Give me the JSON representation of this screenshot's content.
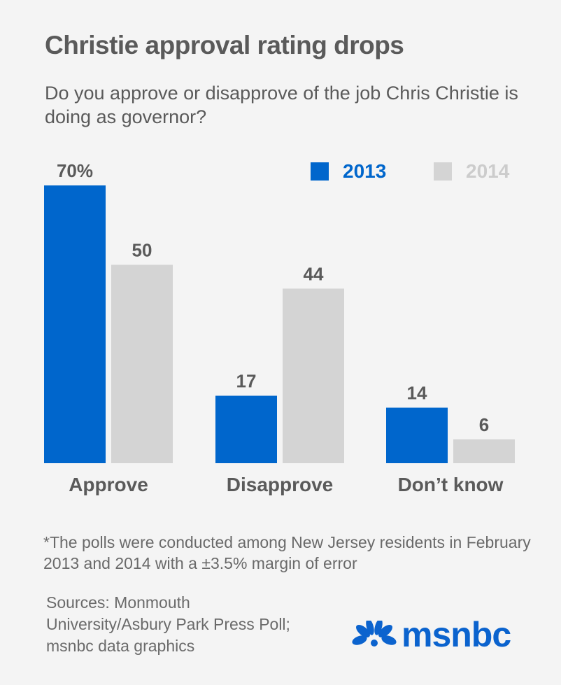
{
  "title": "Christie approval rating drops",
  "subtitle": "Do you approve or disapprove of the job Chris Christie is doing as governor?",
  "colors": {
    "s2013": "#0066cc",
    "s2014": "#d4d4d4",
    "label": "#5a5a5a",
    "legend2014": "#cccccc"
  },
  "chart_data": {
    "type": "bar",
    "categories": [
      "Approve",
      "Disapprove",
      "Don’t know"
    ],
    "series": [
      {
        "name": "2013",
        "values": [
          70,
          17,
          14
        ],
        "labels": [
          "70%",
          "17",
          "14"
        ]
      },
      {
        "name": "2014",
        "values": [
          50,
          44,
          6
        ],
        "labels": [
          "50",
          "44",
          "6"
        ]
      }
    ],
    "ylim": [
      0,
      70
    ],
    "legend": "top-right",
    "grid": false
  },
  "footnote": "*The polls were conducted among New Jersey residents in February 2013 and 2014 with a ±3.5% margin of error",
  "sources": "Sources: Monmouth University/Asbury Park Press Poll; msnbc data graphics",
  "logo": {
    "wordmark": "msnbc",
    "icon": "peacock-icon"
  }
}
